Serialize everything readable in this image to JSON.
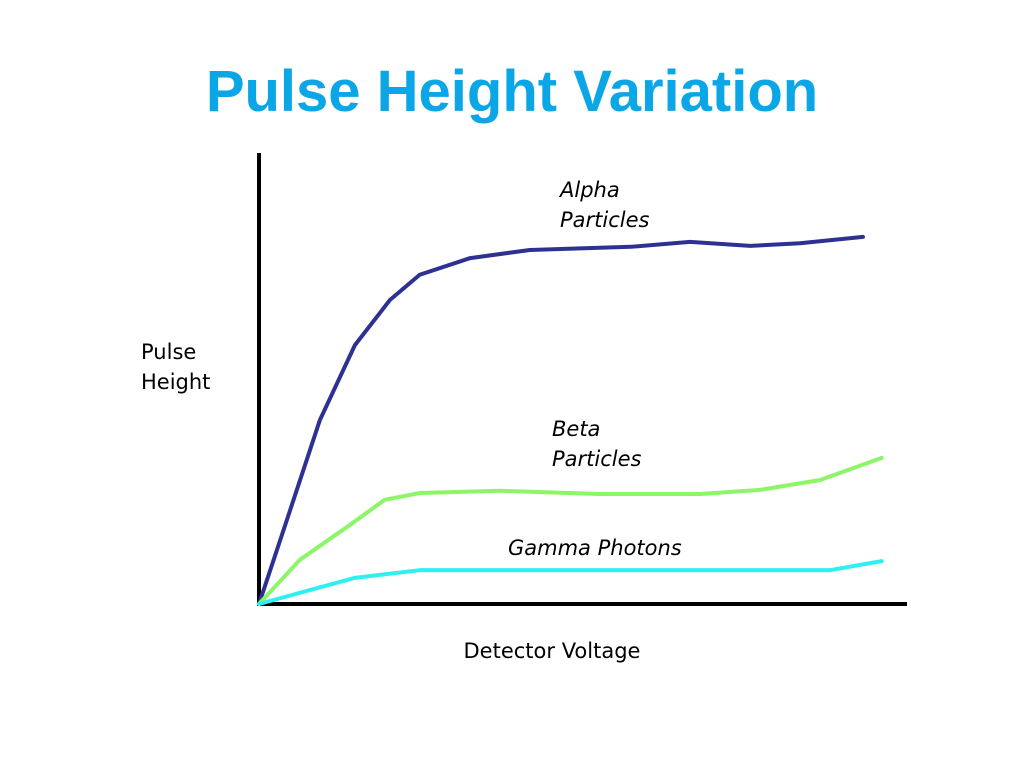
{
  "chart_data": {
    "type": "line",
    "title": "Pulse Height Variation",
    "x_label": "Detector Voltage",
    "y_label": "Pulse Height",
    "xlim": [
      0,
      100
    ],
    "ylim": [
      0,
      100
    ],
    "series": [
      {
        "name": "Alpha Particles",
        "color": "#2e3192",
        "x": [
          0,
          4.8,
          9.4,
          14.8,
          20.2,
          24.8,
          32.6,
          41.8,
          57.4,
          66.5,
          75.8,
          83.5,
          93.2
        ],
        "values": [
          0,
          20.8,
          40.8,
          57.4,
          67.4,
          73.0,
          76.7,
          78.5,
          79.2,
          80.3,
          79.4,
          80.0,
          81.4
        ]
      },
      {
        "name": "Beta Particles",
        "color": "#8cf56a",
        "x": [
          0,
          6.3,
          14.0,
          19.4,
          24.8,
          37.2,
          52.6,
          68.1,
          77.3,
          86.6,
          96.1
        ],
        "values": [
          0,
          9.8,
          17.5,
          23.1,
          24.6,
          25.1,
          24.4,
          24.4,
          25.3,
          27.5,
          32.4
        ]
      },
      {
        "name": "Gamma Photons",
        "color": "#2ff0f0",
        "x": [
          0,
          14.8,
          24.8,
          52.6,
          88.1,
          96.1
        ],
        "values": [
          0,
          5.8,
          7.5,
          7.5,
          7.5,
          9.5
        ]
      }
    ]
  }
}
